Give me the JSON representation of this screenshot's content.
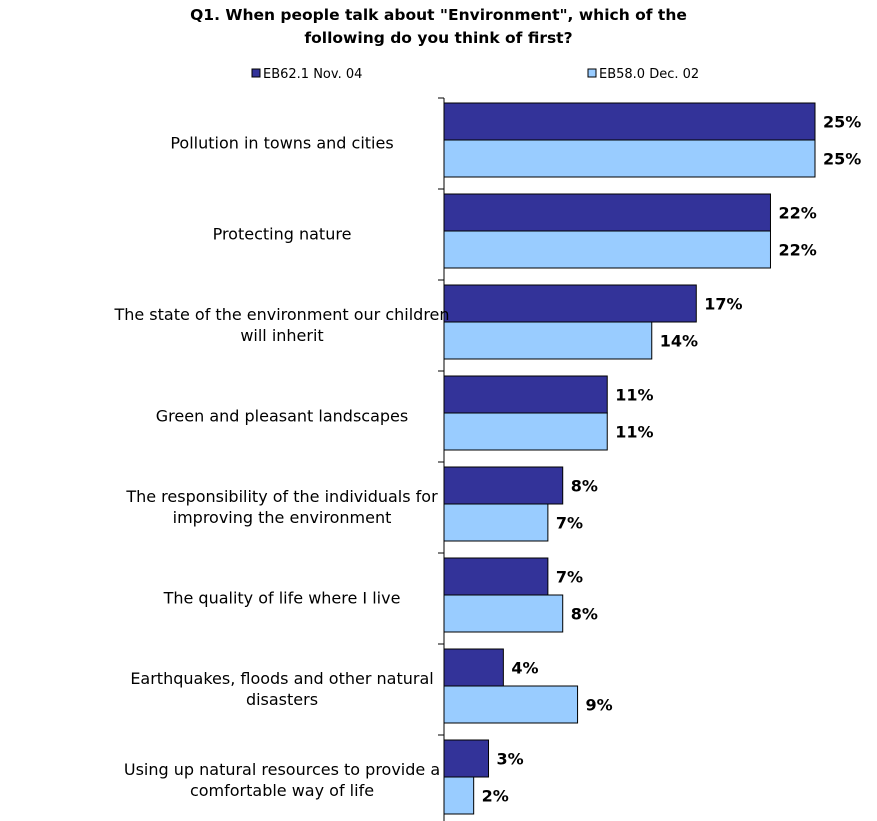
{
  "chart_data": {
    "type": "bar",
    "orientation": "horizontal",
    "title_lines": [
      "Q1. When people talk about \"Environment\", which of the",
      "following do you think of first?"
    ],
    "categories": [
      [
        "Pollution in towns and cities"
      ],
      [
        "Protecting nature"
      ],
      [
        "The state of the environment our children",
        "will inherit"
      ],
      [
        "Green and pleasant landscapes"
      ],
      [
        "The responsibility of the individuals for",
        "improving the environment"
      ],
      [
        "The quality of life where I live"
      ],
      [
        "Earthquakes, floods and other natural",
        "disasters"
      ],
      [
        "Using up natural resources to provide a",
        "comfortable way of life"
      ]
    ],
    "series": [
      {
        "name": "EB62.1 Nov. 04",
        "color": "#333399",
        "values": [
          25,
          22,
          17,
          11,
          8,
          7,
          4,
          3
        ],
        "labels": [
          "25%",
          "22%",
          "17%",
          "11%",
          "8%",
          "7%",
          "4%",
          "3%"
        ]
      },
      {
        "name": "EB58.0 Dec. 02",
        "color": "#99CCFF",
        "values": [
          25,
          22,
          14,
          11,
          7,
          8,
          9,
          2
        ],
        "labels": [
          "25%",
          "22%",
          "14%",
          "11%",
          "7%",
          "8%",
          "9%",
          "2%"
        ]
      }
    ],
    "unit": "%",
    "legend_position": "top",
    "grid": false
  }
}
